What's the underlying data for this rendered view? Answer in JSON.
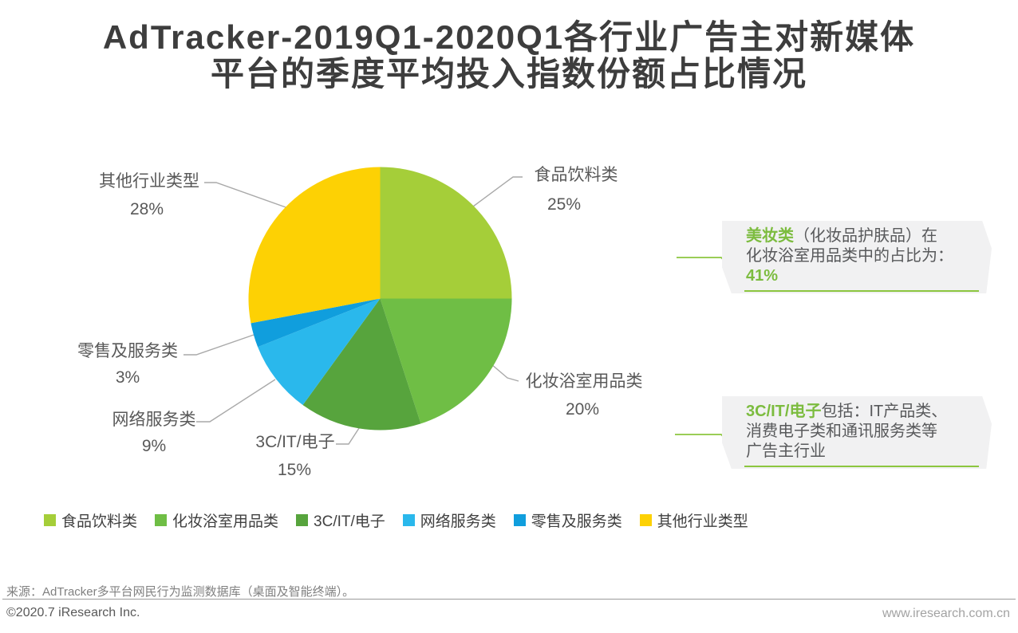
{
  "title_lines": [
    "AdTracker-2019Q1-2020Q1各行业广告主对新媒体",
    "平台的季度平均投入指数份额占比情况"
  ],
  "chart_data": {
    "type": "pie",
    "title": "AdTracker-2019Q1-2020Q1各行业广告主对新媒体平台的季度平均投入指数份额占比情况",
    "labels": [
      "食品饮料类",
      "化妆浴室用品类",
      "3C/IT/电子",
      "网络服务类",
      "零售及服务类",
      "其他行业类型"
    ],
    "values": [
      25,
      20,
      15,
      9,
      3,
      28
    ],
    "percent_labels": [
      "25%",
      "20%",
      "15%",
      "9%",
      "3%",
      "28%"
    ],
    "colors": [
      "#a5ce39",
      "#6fbe45",
      "#57a43d",
      "#2ab8ec",
      "#109edd",
      "#fdd104"
    ],
    "start_angle_deg": 0,
    "direction": "clockwise",
    "legend_position": "bottom"
  },
  "callouts": [
    {
      "lead": "美妆类",
      "line1_rest": "（化妆品护肤品）在",
      "line2": "化妆浴室用品类中的占比为：",
      "line3": "",
      "value": "41%"
    },
    {
      "lead": "3C/IT/电子",
      "line1_rest": "包括：IT产品类、",
      "line2": "消费电子类和通讯服务类等",
      "line3": "广告主行业",
      "value": ""
    }
  ],
  "footer": {
    "source": "来源：AdTracker多平台网民行为监测数据库（桌面及智能终端）。",
    "copyright": "©2020.7 iResearch Inc.",
    "website": "www.iresearch.com.cn"
  },
  "accent_colors": {
    "green_text": "#7cbc3f",
    "green_line": "#8cc63f",
    "title": "#3d3d3d",
    "label": "#595959"
  }
}
